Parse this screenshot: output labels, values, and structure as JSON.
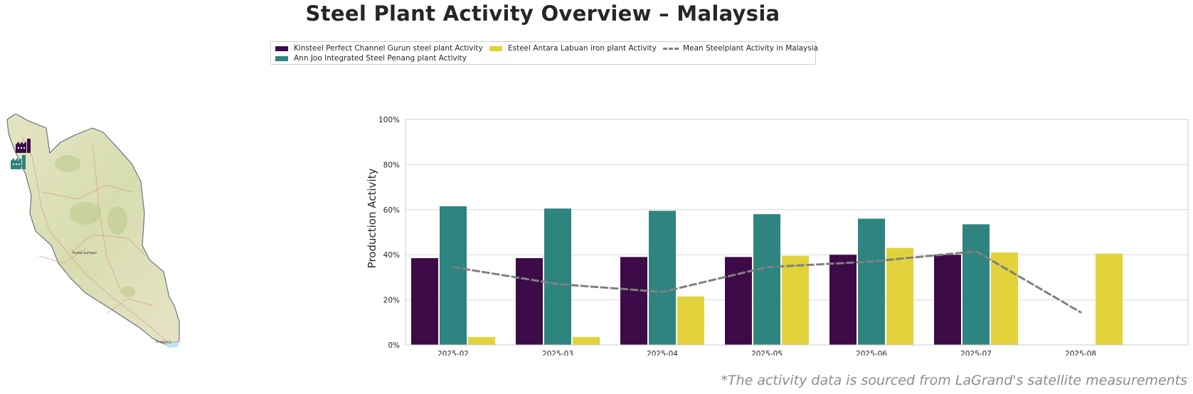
{
  "title": "Steel Plant Activity Overview – Malaysia",
  "footnote": "*The activity data is sourced from LaGrand's satellite measurements",
  "colors": {
    "kinsteel": "#3d0b47",
    "annjoo": "#2e847e",
    "esteel": "#e2d23c",
    "mean": "#808080",
    "grid": "#d9d9d9"
  },
  "legend": [
    {
      "label": "Kinsteel Perfect Channel Gurun steel plant Activity",
      "color": "#3d0b47",
      "kind": "bar"
    },
    {
      "label": "Ann Joo Integrated Steel Penang plant Activity",
      "color": "#2e847e",
      "kind": "bar"
    },
    {
      "label": "Esteel Antara Labuan iron plant Activity",
      "color": "#e2d23c",
      "kind": "bar"
    },
    {
      "label": "Mean Steelplant Activity in Malaysia",
      "color": "#808080",
      "kind": "dashed-line"
    }
  ],
  "map": {
    "labels": [
      "Kuala Lumpur",
      "Singapore"
    ],
    "markers": [
      {
        "icon": "factory-icon",
        "color": "#3d0b47"
      },
      {
        "icon": "factory-icon",
        "color": "#2e847e"
      }
    ]
  },
  "chart_data": {
    "type": "bar",
    "categories": [
      "2025-02",
      "2025-03",
      "2025-04",
      "2025-05",
      "2025-06",
      "2025-07",
      "2025-08"
    ],
    "series": [
      {
        "name": "Kinsteel Perfect Channel Gurun steel plant Activity",
        "values": [
          38.5,
          38.5,
          39,
          39,
          40,
          40,
          null
        ]
      },
      {
        "name": "Ann Joo Integrated Steel Penang plant Activity",
        "values": [
          61.5,
          60.5,
          59.5,
          58,
          56,
          53.5,
          null
        ]
      },
      {
        "name": "Esteel Antara Labuan iron plant Activity",
        "values": [
          3.5,
          3.5,
          21.5,
          39.5,
          43,
          41,
          40.5
        ]
      }
    ],
    "line": {
      "name": "Mean Steelplant Activity in Malaysia",
      "values": [
        34.5,
        27,
        23.5,
        34.5,
        37,
        41.5,
        14.5
      ]
    },
    "ylabel": "Production Activity",
    "xlabel": "",
    "ylim": [
      0,
      100
    ],
    "yticks": [
      "0%",
      "20%",
      "40%",
      "60%",
      "80%",
      "100%"
    ],
    "grid": true,
    "legend_position": "top"
  }
}
